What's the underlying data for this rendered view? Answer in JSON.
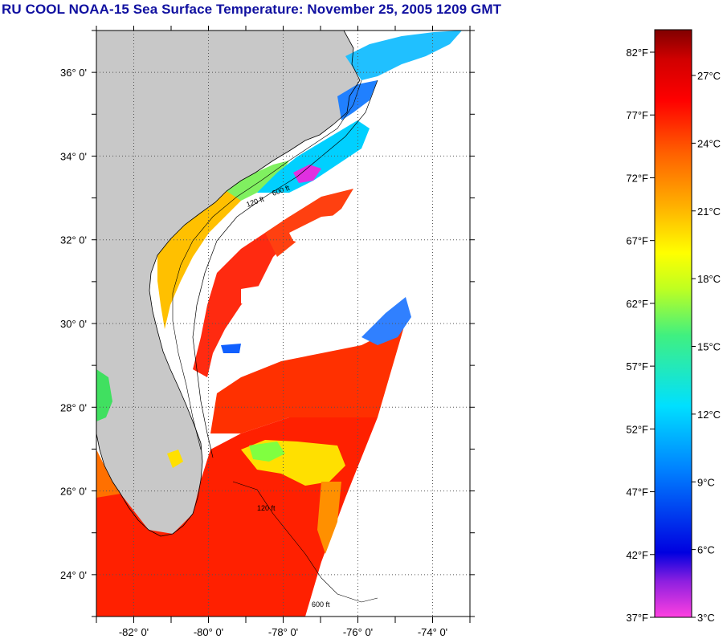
{
  "title": "RU COOL  NOAA-15  Sea Surface Temperature:  November 25, 2005 1209 GMT",
  "map": {
    "lon_range": [
      -83,
      -73
    ],
    "lat_range": [
      23,
      37
    ],
    "lat_labels": [
      {
        "value": 36,
        "text": "36° 0'"
      },
      {
        "value": 34,
        "text": "34° 0'"
      },
      {
        "value": 32,
        "text": "32° 0'"
      },
      {
        "value": 30,
        "text": "30° 0'"
      },
      {
        "value": 28,
        "text": "28° 0'"
      },
      {
        "value": 26,
        "text": "26° 0'"
      },
      {
        "value": 24,
        "text": "24° 0'"
      }
    ],
    "lon_labels": [
      {
        "value": -82,
        "text": "-82° 0'"
      },
      {
        "value": -80,
        "text": "-80° 0'"
      },
      {
        "value": -78,
        "text": "-78° 0'"
      },
      {
        "value": -76,
        "text": "-76° 0'"
      },
      {
        "value": -74,
        "text": "-74° 0'"
      }
    ],
    "contour_labels": [
      "120 ft",
      "600 ft"
    ],
    "colors": {
      "land": "#c8c8c8",
      "no_data": "#ffffff",
      "gridline": "#555555",
      "coastline": "#000000"
    }
  },
  "colorbar": {
    "fahrenheit_labels": [
      "82°F",
      "77°F",
      "72°F",
      "67°F",
      "62°F",
      "57°F",
      "52°F",
      "47°F",
      "42°F",
      "37°F"
    ],
    "celsius_labels": [
      "27°C",
      "24°C",
      "21°C",
      "18°C",
      "15°C",
      "12°C",
      "9°C",
      "6°C",
      "3°C"
    ],
    "colors": [
      "#ff40e0",
      "#8020e0",
      "#0000e0",
      "#0080ff",
      "#00e0ff",
      "#40f080",
      "#c0ff20",
      "#ffff00",
      "#ffb000",
      "#ff6000",
      "#ff0000",
      "#d00000",
      "#800000"
    ]
  }
}
